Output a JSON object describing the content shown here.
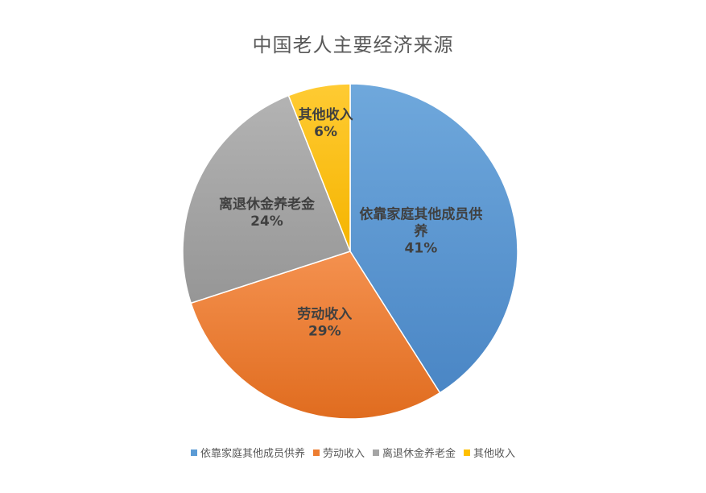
{
  "chart_data": {
    "type": "pie",
    "title": "中国老人主要经济来源",
    "categories": [
      "依靠家庭其他成员供养",
      "劳动收入",
      "离退休金养老金",
      "其他收入"
    ],
    "values": [
      41,
      29,
      24,
      6
    ],
    "labels": [
      [
        "依靠家庭其他成员供",
        "养",
        "41%"
      ],
      [
        "劳动收入",
        "29%"
      ],
      [
        "离退休金养老金",
        "24%"
      ],
      [
        "其他收入",
        "6%"
      ]
    ],
    "colors": [
      "#5B9BD5",
      "#ED7D31",
      "#A5A5A5",
      "#FFC000"
    ],
    "legend": "bottom"
  }
}
